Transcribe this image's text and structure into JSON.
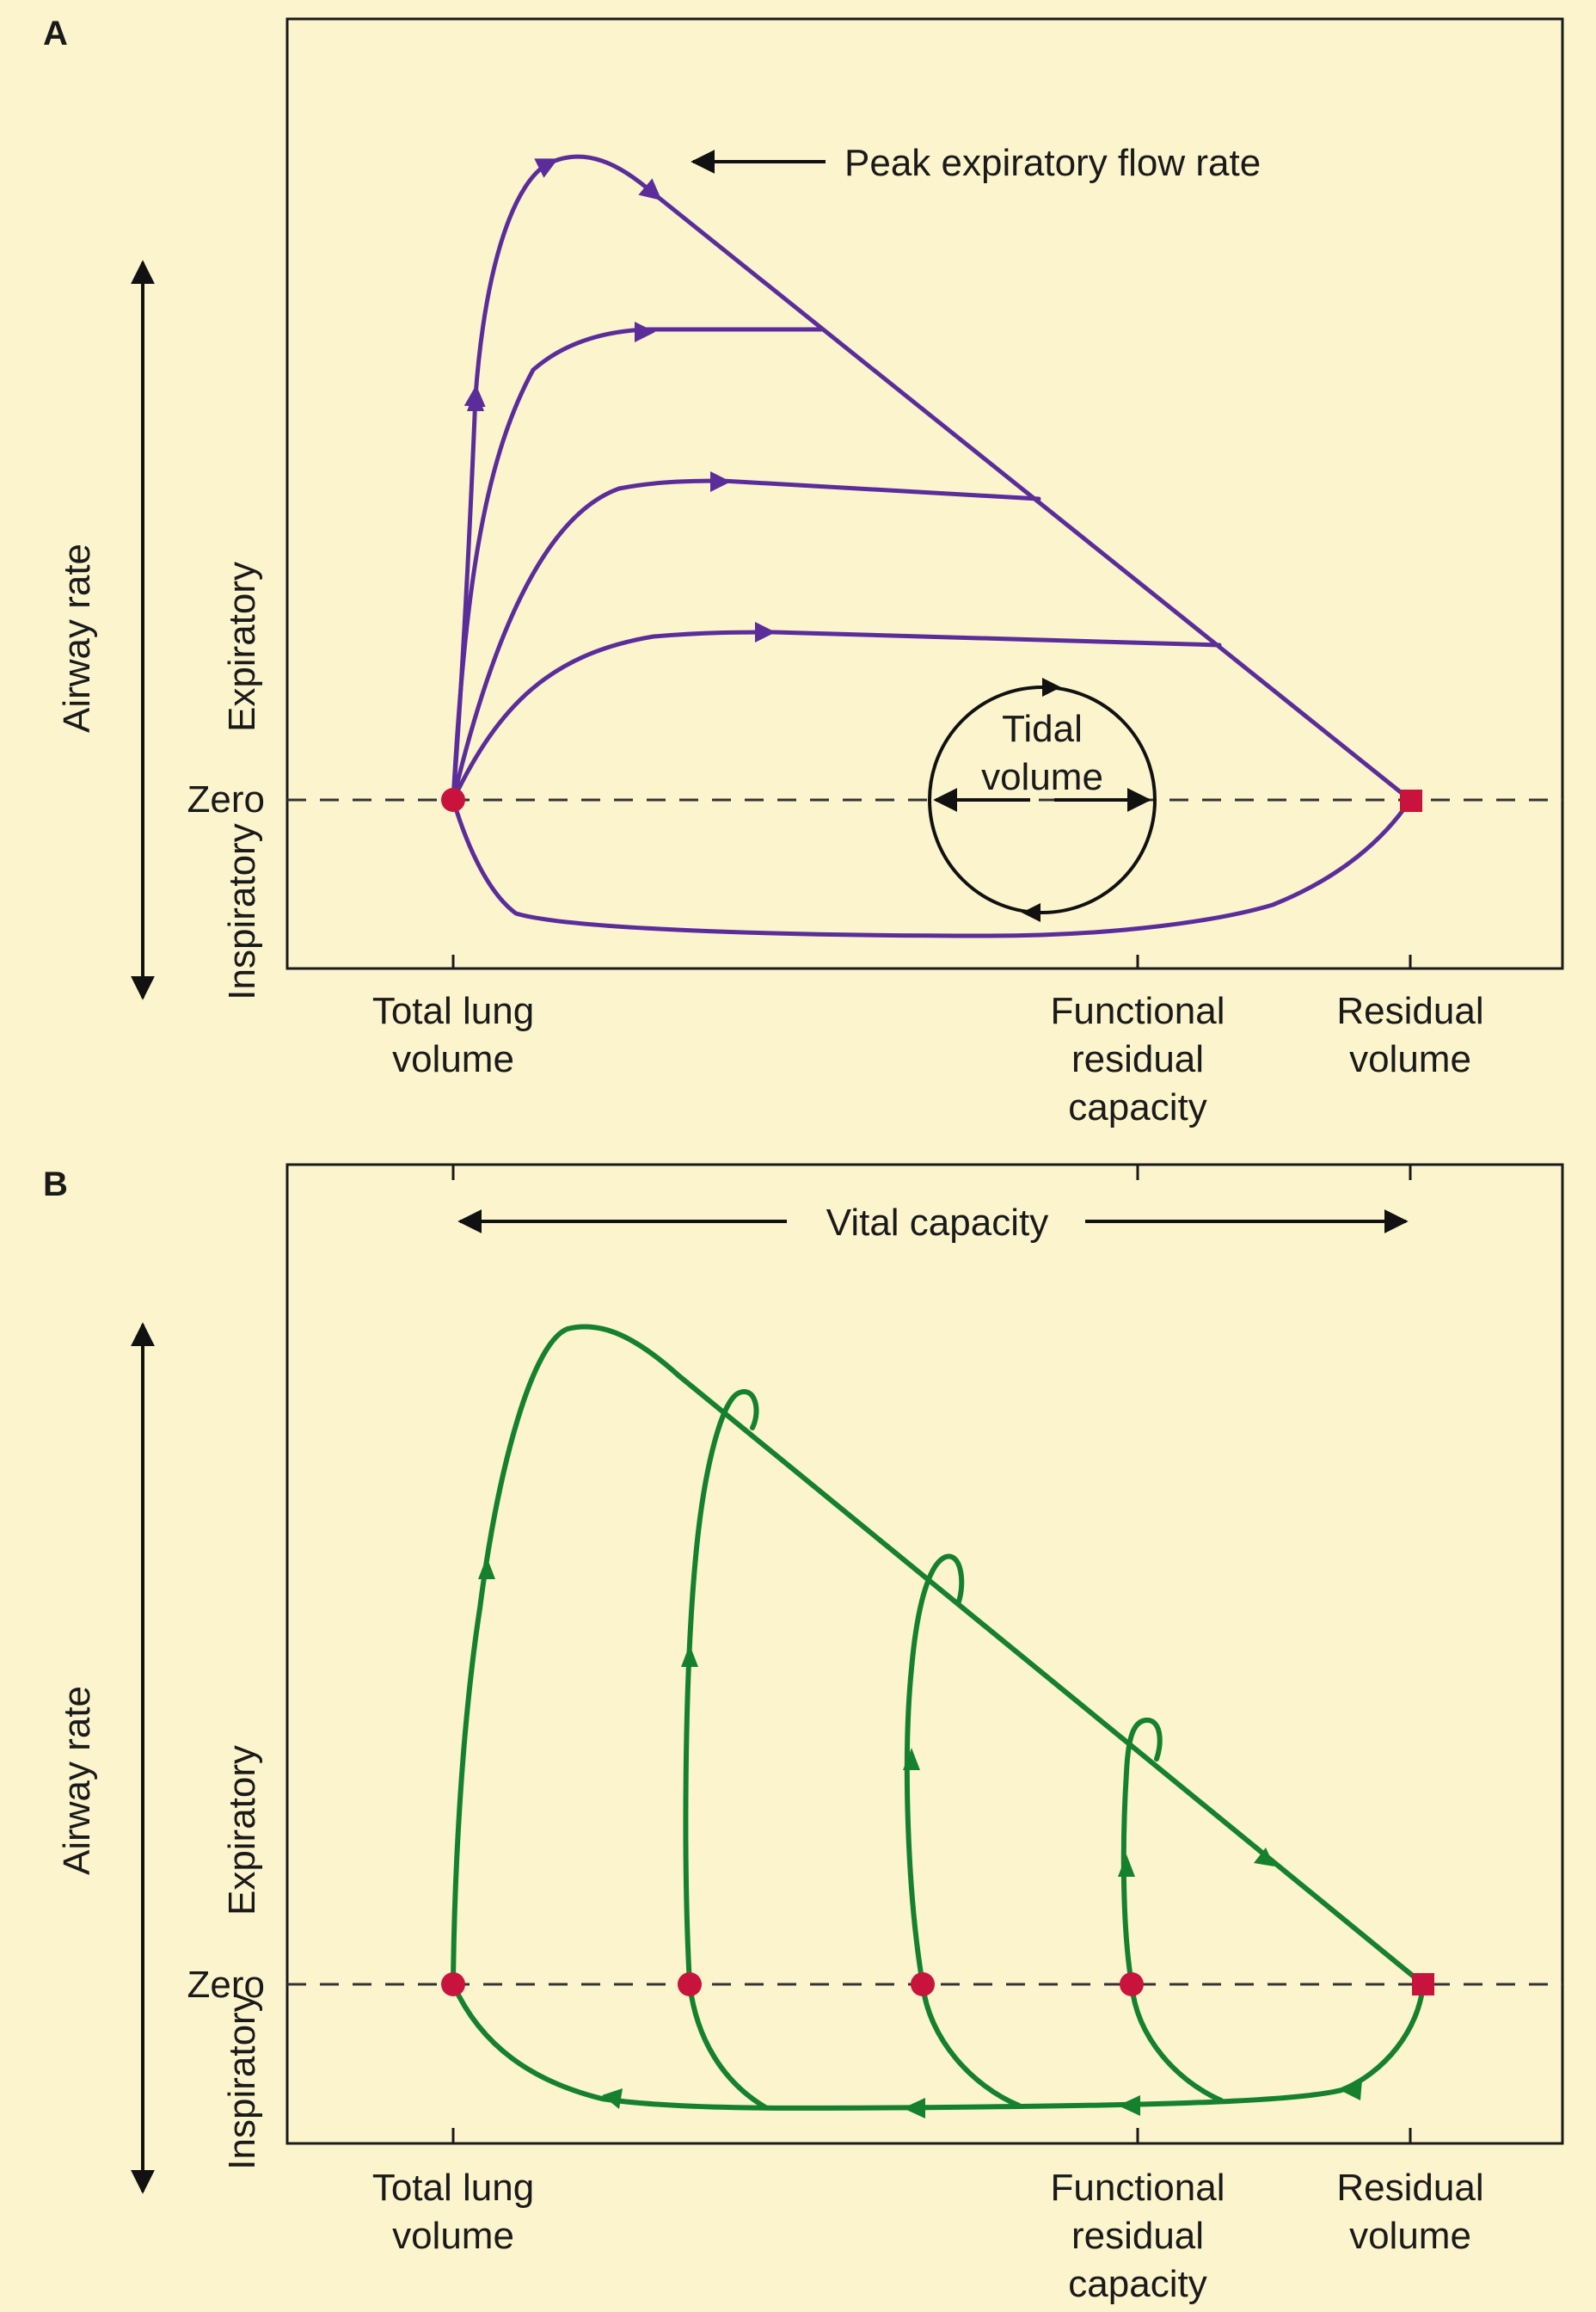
{
  "panel_a": {
    "letter": "A",
    "y_axis_label": "Airway rate",
    "expiratory_label": "Expiratory",
    "inspiratory_label": "Inspiratory",
    "zero_label": "Zero",
    "peak_label": "Peak expiratory flow rate",
    "tidal_label_1": "Tidal",
    "tidal_label_2": "volume",
    "x_labels": {
      "tlc_1": "Total lung",
      "tlc_2": "volume",
      "frc_1": "Functional",
      "frc_2": "residual",
      "frc_3": "capacity",
      "rv_1": "Residual",
      "rv_2": "volume"
    },
    "curve_color": "#5a2d9b"
  },
  "panel_b": {
    "letter": "B",
    "y_axis_label": "Airway rate",
    "expiratory_label": "Expiratory",
    "inspiratory_label": "Inspiratory",
    "zero_label": "Zero",
    "vital_capacity_label": "Vital capacity",
    "x_labels": {
      "tlc_1": "Total lung",
      "tlc_2": "volume",
      "frc_1": "Functional",
      "frc_2": "residual",
      "frc_3": "capacity",
      "rv_1": "Residual",
      "rv_2": "volume"
    },
    "curve_color": "#15812f"
  },
  "colors": {
    "background": "#fbf4cd",
    "marker": "#c8143c"
  }
}
